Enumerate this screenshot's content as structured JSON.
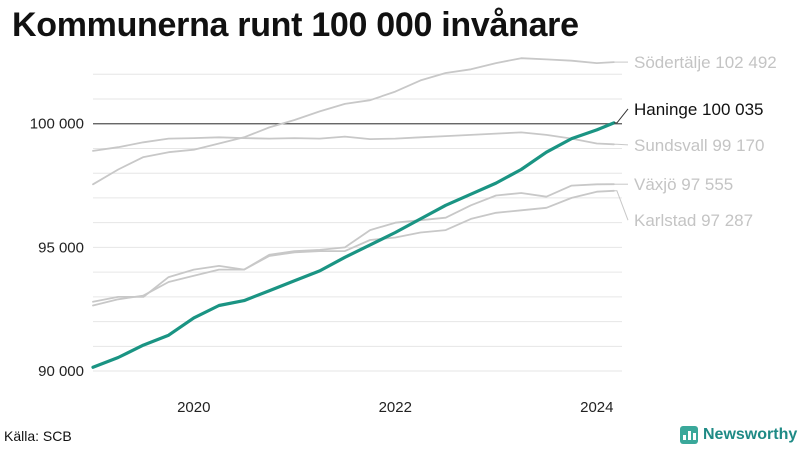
{
  "chart_data": {
    "type": "line",
    "title": "Kommunerna runt 100 000 invånare",
    "x_ticks": [
      "2020",
      "2022",
      "2024"
    ],
    "x_range": [
      2019.0,
      2024.25
    ],
    "y_ticks": [
      "90 000",
      "95 000",
      "100 000"
    ],
    "y_tick_values": [
      90000,
      95000,
      100000
    ],
    "ylim": [
      89800,
      102900
    ],
    "reference_line": 100000,
    "grid": "horizontal",
    "series": [
      {
        "name": "Södertälje",
        "label": "Södertälje 102 492",
        "highlight": false,
        "color": "#c8c8c8",
        "x": [
          2019.0,
          2019.25,
          2019.5,
          2019.75,
          2020.0,
          2020.25,
          2020.5,
          2020.75,
          2021.0,
          2021.25,
          2021.5,
          2021.75,
          2022.0,
          2022.25,
          2022.5,
          2022.75,
          2023.0,
          2023.25,
          2023.5,
          2023.75,
          2024.0,
          2024.17
        ],
        "y": [
          97550,
          98150,
          98650,
          98850,
          98950,
          99200,
          99450,
          99850,
          100150,
          100500,
          100800,
          100950,
          101300,
          101750,
          102050,
          102200,
          102450,
          102650,
          102600,
          102550,
          102450,
          102492
        ]
      },
      {
        "name": "Haninge",
        "label": "Haninge 100 035",
        "highlight": true,
        "color": "#1a9483",
        "x": [
          2019.0,
          2019.25,
          2019.5,
          2019.75,
          2020.0,
          2020.25,
          2020.5,
          2020.75,
          2021.0,
          2021.25,
          2021.5,
          2021.75,
          2022.0,
          2022.25,
          2022.5,
          2022.75,
          2023.0,
          2023.25,
          2023.5,
          2023.75,
          2024.0,
          2024.17
        ],
        "y": [
          90150,
          90550,
          91050,
          91450,
          92150,
          92650,
          92850,
          93250,
          93650,
          94050,
          94600,
          95100,
          95600,
          96150,
          96700,
          97150,
          97600,
          98150,
          98850,
          99400,
          99750,
          100035
        ]
      },
      {
        "name": "Sundsvall",
        "label": "Sundsvall  99 170",
        "highlight": false,
        "color": "#c8c8c8",
        "x": [
          2019.0,
          2019.25,
          2019.5,
          2019.75,
          2020.0,
          2020.25,
          2020.5,
          2020.75,
          2021.0,
          2021.25,
          2021.5,
          2021.75,
          2022.0,
          2022.25,
          2022.5,
          2022.75,
          2023.0,
          2023.25,
          2023.5,
          2023.75,
          2024.0,
          2024.17
        ],
        "y": [
          98900,
          99050,
          99250,
          99400,
          99420,
          99450,
          99420,
          99400,
          99420,
          99400,
          99480,
          99380,
          99400,
          99450,
          99500,
          99550,
          99600,
          99650,
          99550,
          99400,
          99200,
          99170
        ]
      },
      {
        "name": "Växjö",
        "label": "Växjö  97 555",
        "highlight": false,
        "color": "#c8c8c8",
        "x": [
          2019.0,
          2019.25,
          2019.5,
          2019.75,
          2020.0,
          2020.25,
          2020.5,
          2020.75,
          2021.0,
          2021.25,
          2021.5,
          2021.75,
          2022.0,
          2022.25,
          2022.5,
          2022.75,
          2023.0,
          2023.25,
          2023.5,
          2023.75,
          2024.0,
          2024.17
        ],
        "y": [
          92800,
          93000,
          93000,
          93800,
          94100,
          94250,
          94100,
          94700,
          94850,
          94900,
          95000,
          95700,
          96000,
          96100,
          96200,
          96700,
          97100,
          97200,
          97050,
          97500,
          97550,
          97555
        ]
      },
      {
        "name": "Karlstad",
        "label": "Karlstad  97 287",
        "highlight": false,
        "color": "#c8c8c8",
        "x": [
          2019.0,
          2019.25,
          2019.5,
          2019.75,
          2020.0,
          2020.25,
          2020.5,
          2020.75,
          2021.0,
          2021.25,
          2021.5,
          2021.75,
          2022.0,
          2022.25,
          2022.5,
          2022.75,
          2023.0,
          2023.25,
          2023.5,
          2023.75,
          2024.0,
          2024.17
        ],
        "y": [
          92650,
          92900,
          93050,
          93600,
          93850,
          94100,
          94100,
          94650,
          94800,
          94850,
          94850,
          95300,
          95400,
          95600,
          95700,
          96150,
          96400,
          96500,
          96600,
          97000,
          97250,
          97287
        ]
      }
    ]
  },
  "footer": {
    "source": "Källa: SCB",
    "brand": "Newsworthy",
    "brand_icon": "bar-chart-icon",
    "brand_color": "#1e8a85"
  }
}
